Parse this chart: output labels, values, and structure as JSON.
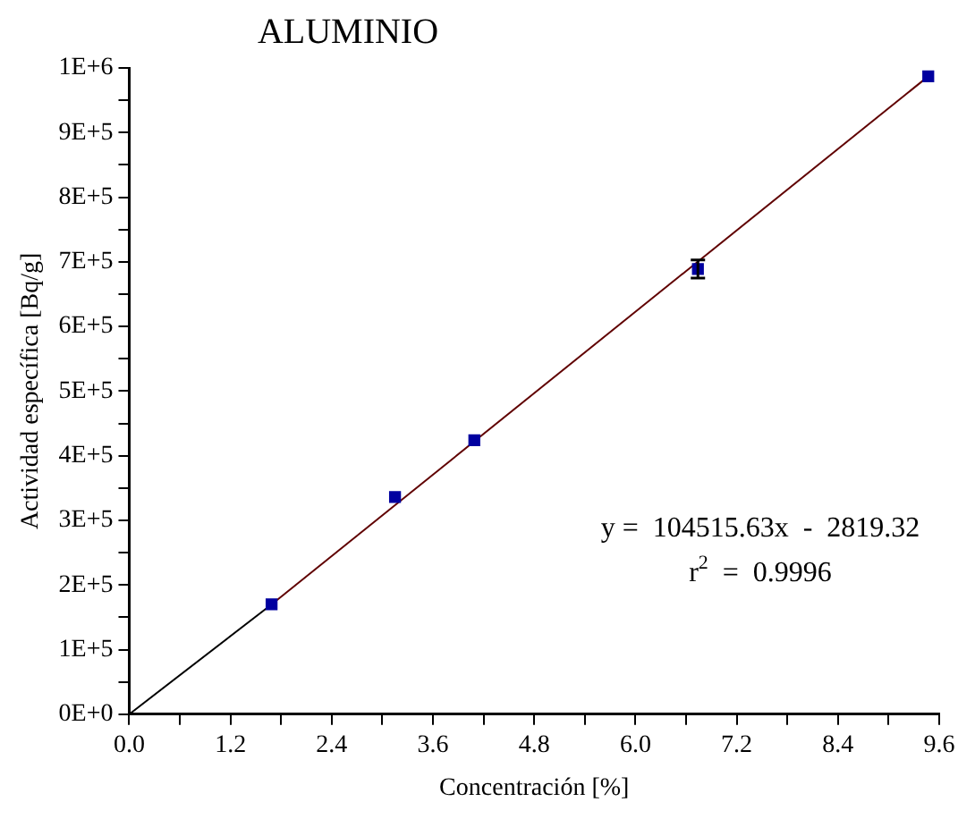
{
  "chart_data": {
    "type": "scatter",
    "title": "ALUMINIO",
    "xlabel": "Concentración [%]",
    "ylabel": "Actividad específica [Bq/g]",
    "annotations": [
      "y =  104515.63x  -  2819.32",
      "r$^{2}$  =  0.9996"
    ],
    "x": [
      1.687,
      3.15,
      4.09,
      6.74,
      9.47
    ],
    "series": [
      {
        "color": "#0000a0",
        "values": [
          170000,
          336000,
          424000,
          689000,
          987000
        ],
        "errors": [
          null,
          null,
          null,
          14000,
          null
        ],
        "marker": "square"
      },
      {
        "type": "line",
        "color": "#000000",
        "x": [
          0,
          1.687
        ],
        "values": [
          0,
          170000
        ],
        "marker": "none"
      },
      {
        "type": "line",
        "color": "#600000",
        "x": [
          1.687,
          9.47
        ],
        "values": [
          170000,
          987000
        ],
        "marker": "none"
      }
    ],
    "xlim": [
      0,
      9.6
    ],
    "xticks": [
      {
        "value": 0,
        "label": "0.0"
      },
      {
        "value": 0.6,
        "label": null
      },
      1.2,
      {
        "value": 1.8,
        "label": null
      },
      2.4,
      {
        "value": 3,
        "label": null
      },
      3.6,
      {
        "value": 4.2,
        "label": null
      },
      4.8,
      {
        "value": 5.4,
        "label": null
      },
      {
        "value": 6,
        "label": "6.0"
      },
      {
        "value": 6.6,
        "label": null
      },
      7.2,
      {
        "value": 7.8,
        "label": null
      },
      8.4,
      {
        "value": 9,
        "label": null
      },
      9.6
    ],
    "ylim": [
      0,
      1000000
    ],
    "yticks": [
      {
        "value": 0,
        "label": "0E+0"
      },
      {
        "value": 50000,
        "label": null
      },
      {
        "value": 100000,
        "label": "1E+5"
      },
      {
        "value": 150000,
        "label": null
      },
      {
        "value": 200000,
        "label": "2E+5"
      },
      {
        "value": 250000,
        "label": null
      },
      {
        "value": 300000,
        "label": "3E+5"
      },
      {
        "value": 350000,
        "label": null
      },
      {
        "value": 400000,
        "label": "4E+5"
      },
      {
        "value": 450000,
        "label": null
      },
      {
        "value": 500000,
        "label": "5E+5"
      },
      {
        "value": 550000,
        "label": null
      },
      {
        "value": 600000,
        "label": "6E+5"
      },
      {
        "value": 650000,
        "label": null
      },
      {
        "value": 700000,
        "label": "7E+5"
      },
      {
        "value": 750000,
        "label": null
      },
      {
        "value": 800000,
        "label": "8E+5"
      },
      {
        "value": 850000,
        "label": null
      },
      {
        "value": 900000,
        "label": "9E+5"
      },
      {
        "value": 950000,
        "label": null
      },
      {
        "value": 1000000,
        "label": "1E+6"
      }
    ],
    "grid": false,
    "legend": false
  }
}
